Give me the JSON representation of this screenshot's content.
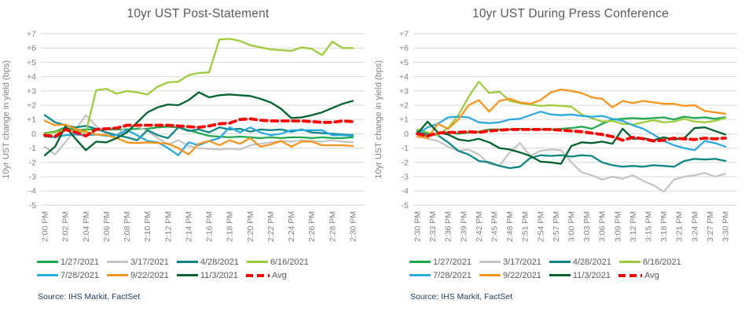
{
  "page": {
    "source_label": "Source: IHS Markit, FactSet"
  },
  "palette": {
    "background": "#FFFFFF",
    "title_text": "#595959",
    "axis_text": "#808080",
    "gridline": "#D9D9D9",
    "legend_text": "#595959",
    "source_text": "#17375E",
    "avg_red": "#FF0000"
  },
  "legend": {
    "rows": [
      [
        "1/27/2021",
        "3/17/2021",
        "4/28/2021",
        "6/16/2021"
      ],
      [
        "7/28/2021",
        "9/22/2021",
        "11/3/2021",
        "Avg"
      ]
    ]
  },
  "chart_data": [
    {
      "type": "line",
      "title": "10yr UST Post-Statement",
      "ylabel": "10yr UST change in yield (bps)",
      "ylim": [
        -5,
        7
      ],
      "grid": true,
      "legend_position": "bottom",
      "ytick_labels": [
        "+7",
        "+6",
        "+5",
        "+4",
        "+3",
        "+2",
        "+1",
        "0",
        "-1",
        "-2",
        "-3",
        "-4",
        "-5"
      ],
      "x_tick_labels": [
        "2:00 PM",
        "2:02 PM",
        "2:04 PM",
        "2:06 PM",
        "2:08 PM",
        "2:10 PM",
        "2:12 PM",
        "2:14 PM",
        "2:16 PM",
        "2:18 PM",
        "2:20 PM",
        "2:22 PM",
        "2:24 PM",
        "2:26 PM",
        "2:28 PM",
        "2:30 PM"
      ],
      "x_interval_minutes": 1,
      "series": [
        {
          "name": "1/27/2021",
          "color": "#1FA84D",
          "dashed": false,
          "values": [
            0.05,
            0.15,
            0.45,
            0.25,
            0.3,
            0.3,
            0.3,
            0.3,
            0.3,
            0.35,
            0.35,
            0.45,
            0.5,
            0.45,
            0.25,
            0.05,
            -0.15,
            -0.2,
            -0.25,
            -0.2,
            -0.25,
            -0.3,
            -0.25,
            -0.3,
            -0.25,
            -0.25,
            -0.3,
            -0.25,
            -0.3,
            -0.3,
            -0.25
          ]
        },
        {
          "name": "3/17/2021",
          "color": "#C5C5C5",
          "dashed": false,
          "values": [
            -0.9,
            -1.45,
            -0.6,
            0.3,
            1.3,
            0.55,
            0,
            -0.1,
            0.55,
            0.5,
            0.2,
            -0.3,
            -0.75,
            -0.45,
            -0.85,
            -1,
            -1.05,
            -1.1,
            -1.05,
            -1.1,
            -0.8,
            -0.7,
            -0.6,
            -0.5,
            -0.55,
            -0.45,
            -0.5,
            -0.55,
            -0.45,
            -0.55,
            -0.6
          ]
        },
        {
          "name": "4/28/2021",
          "color": "#0F8584",
          "dashed": false,
          "values": [
            1.3,
            0.8,
            0.6,
            0.45,
            0.55,
            0.35,
            0.1,
            -0.1,
            -0.25,
            -0.45,
            0.25,
            -0.1,
            -0.3,
            0.45,
            0.2,
            0.3,
            0.1,
            0.45,
            0.3,
            0.35,
            0.15,
            0.3,
            0.25,
            0.3,
            0.15,
            0.3,
            0.1,
            0.05,
            0,
            -0.05,
            -0.1
          ]
        },
        {
          "name": "6/16/2021",
          "color": "#9CCB3B",
          "dashed": false,
          "values": [
            0,
            0.1,
            0.3,
            0.2,
            0.1,
            3.05,
            3.15,
            2.8,
            3,
            2.9,
            2.75,
            3.3,
            3.6,
            3.65,
            4.1,
            4.25,
            4.3,
            6.6,
            6.65,
            6.5,
            6.2,
            6.05,
            5.9,
            5.85,
            5.8,
            6.05,
            5.95,
            5.5,
            6.45,
            6,
            6
          ]
        },
        {
          "name": "7/28/2021",
          "color": "#2BA9E1",
          "dashed": false,
          "values": [
            -0.2,
            -0.25,
            -0.1,
            -0.05,
            -0.1,
            -0.05,
            -0.15,
            -0.1,
            0.25,
            -0.1,
            -0.5,
            -0.6,
            -1,
            -1.5,
            -0.6,
            -0.8,
            -0.5,
            -0.3,
            0.45,
            0.1,
            0.45,
            0.1,
            -0.1,
            0,
            0.25,
            0.25,
            0.25,
            0.25,
            -0.1,
            -0.1,
            -0.15
          ]
        },
        {
          "name": "9/22/2021",
          "color": "#F7941E",
          "dashed": false,
          "values": [
            0.9,
            0.6,
            0.65,
            0.35,
            0.15,
            -0.05,
            -0.1,
            -0.3,
            -0.6,
            -0.65,
            -0.6,
            -0.65,
            -0.7,
            -1,
            -1.45,
            -0.7,
            -0.5,
            -0.8,
            -0.45,
            -0.7,
            -0.3,
            -0.9,
            -0.75,
            -0.5,
            -0.9,
            -0.55,
            -0.55,
            -0.8,
            -0.8,
            -0.8,
            -0.85
          ]
        },
        {
          "name": "11/3/2021",
          "color": "#00622D",
          "dashed": false,
          "values": [
            -1.5,
            -0.9,
            0.5,
            -0.35,
            -1.15,
            -0.55,
            -0.6,
            -0.3,
            0.1,
            0.8,
            1.5,
            1.85,
            2.05,
            2,
            2.35,
            2.9,
            2.55,
            2.7,
            2.75,
            2.7,
            2.65,
            2.45,
            2.2,
            1.75,
            1.1,
            1.15,
            1.3,
            1.5,
            1.8,
            2.1,
            2.3
          ]
        },
        {
          "name": "Avg",
          "color": "#FF0000",
          "dashed": true,
          "values": [
            -0.1,
            -0.2,
            0.3,
            0.1,
            -0.15,
            0.3,
            0.35,
            0.4,
            0.6,
            0.6,
            0.6,
            0.6,
            0.6,
            0.55,
            0.5,
            0.45,
            0.55,
            0.7,
            0.75,
            1,
            1.05,
            0.95,
            0.9,
            0.9,
            0.9,
            0.9,
            0.85,
            0.8,
            0.8,
            0.9,
            0.85
          ]
        }
      ]
    },
    {
      "type": "line",
      "title": "10yr UST During Press Conference",
      "ylabel": "10yr UST change in yield (bps)",
      "ylim": [
        -5,
        7
      ],
      "grid": true,
      "legend_position": "bottom",
      "ytick_labels": [
        "+7",
        "+6",
        "+5",
        "+4",
        "+3",
        "+2",
        "+1",
        "0",
        "-1",
        "-2",
        "-3",
        "-4",
        "-5"
      ],
      "x_tick_labels": [
        "2:30 PM",
        "2:33 PM",
        "2:36 PM",
        "2:39 PM",
        "2:42 PM",
        "2:45 PM",
        "2:48 PM",
        "2:51 PM",
        "2:54 PM",
        "2:57 PM",
        "3:00 PM",
        "3:03 PM",
        "3:06 PM",
        "3:09 PM",
        "3:12 PM",
        "3:15 PM",
        "3:18 PM",
        "3:21 PM",
        "3:24 PM",
        "3:27 PM",
        "3:30 PM"
      ],
      "x_interval_minutes": 2,
      "series": [
        {
          "name": "1/27/2021",
          "color": "#1FA84D",
          "dashed": false,
          "values": [
            0.2,
            -0.2,
            0.05,
            0.1,
            0,
            0.1,
            0.15,
            0.3,
            0.3,
            0.3,
            0.35,
            0.3,
            0.3,
            0.3,
            0.35,
            0.4,
            0.5,
            0.35,
            0.7,
            1,
            1.05,
            1.1,
            1.05,
            1.1,
            1.15,
            1,
            1.2,
            1.1,
            1.15,
            1.05,
            1.15
          ]
        },
        {
          "name": "3/17/2021",
          "color": "#C5C5C5",
          "dashed": false,
          "values": [
            0,
            -0.35,
            -0.5,
            -0.9,
            -1.2,
            -1.1,
            -1.45,
            -2.1,
            -2.25,
            -1.3,
            -0.65,
            -1.55,
            -1.2,
            -1.1,
            -1.15,
            -2,
            -2.7,
            -2.9,
            -3.2,
            -3,
            -3.15,
            -2.9,
            -3.3,
            -3.6,
            -4.05,
            -3.2,
            -3,
            -2.9,
            -2.75,
            -3,
            -2.8
          ]
        },
        {
          "name": "4/28/2021",
          "color": "#0F8584",
          "dashed": false,
          "values": [
            0.1,
            0,
            -0.1,
            -0.6,
            -1.2,
            -1.45,
            -1.9,
            -2,
            -2.25,
            -2.4,
            -2.3,
            -1.7,
            -1.5,
            -1.55,
            -1.5,
            -1.6,
            -1.5,
            -1.55,
            -2,
            -2.2,
            -2.3,
            -2.25,
            -2.3,
            -2.2,
            -2.25,
            -2.3,
            -1.9,
            -1.75,
            -1.8,
            -1.75,
            -1.9
          ]
        },
        {
          "name": "6/16/2021",
          "color": "#9CCB3B",
          "dashed": false,
          "values": [
            0.3,
            0.1,
            -0.1,
            0.4,
            1.3,
            2.6,
            3.65,
            2.85,
            2.95,
            2.3,
            2.15,
            2.05,
            1.95,
            2,
            1.95,
            1.9,
            1.35,
            1.1,
            0.85,
            0.9,
            0.7,
            0.65,
            0.8,
            0.95,
            0.8,
            0.85,
            1.05,
            0.85,
            0.8,
            0.9,
            1.1
          ]
        },
        {
          "name": "7/28/2021",
          "color": "#2BA9E1",
          "dashed": false,
          "values": [
            0,
            0.45,
            0.7,
            1.15,
            1.2,
            1.15,
            0.8,
            0.75,
            0.8,
            1,
            1.05,
            1.3,
            1.55,
            1.35,
            1.3,
            1.35,
            1.25,
            1.2,
            1.25,
            1.05,
            0.9,
            0.6,
            0.35,
            -0.05,
            -0.5,
            -0.8,
            -1,
            -1.15,
            -0.5,
            -0.65,
            -0.9
          ]
        },
        {
          "name": "9/22/2021",
          "color": "#F7941E",
          "dashed": false,
          "values": [
            -0.2,
            -0.3,
            0.7,
            0.35,
            1,
            2,
            2.35,
            1.55,
            2.3,
            2.45,
            2.2,
            2.1,
            2.35,
            2.9,
            3.1,
            3,
            2.85,
            2.55,
            2.45,
            1.85,
            2.3,
            2.15,
            2.3,
            2.2,
            2.1,
            2.1,
            1.95,
            2,
            1.6,
            1.5,
            1.4
          ]
        },
        {
          "name": "11/3/2021",
          "color": "#00622D",
          "dashed": false,
          "values": [
            0,
            0.85,
            0.1,
            -0.05,
            -0.4,
            -0.5,
            -0.35,
            -0.6,
            -1,
            -1.1,
            -1.3,
            -1.55,
            -1.95,
            -2,
            -2.1,
            -0.85,
            -0.6,
            -0.65,
            -0.55,
            -0.7,
            0.35,
            -0.35,
            -0.3,
            -0.45,
            -0.25,
            -0.4,
            -0.3,
            0.4,
            0.45,
            0.2,
            -0.05
          ]
        },
        {
          "name": "Avg",
          "color": "#FF0000",
          "dashed": true,
          "values": [
            0,
            -0.15,
            0.05,
            0.1,
            0.1,
            0.15,
            0.1,
            0.2,
            0.25,
            0.3,
            0.3,
            0.3,
            0.3,
            0.3,
            0.25,
            0.2,
            0.15,
            0.05,
            -0.05,
            -0.2,
            -0.45,
            -0.25,
            -0.35,
            -0.5,
            -0.45,
            -0.3,
            -0.35,
            -0.4,
            -0.3,
            -0.35,
            -0.3
          ]
        }
      ]
    }
  ]
}
